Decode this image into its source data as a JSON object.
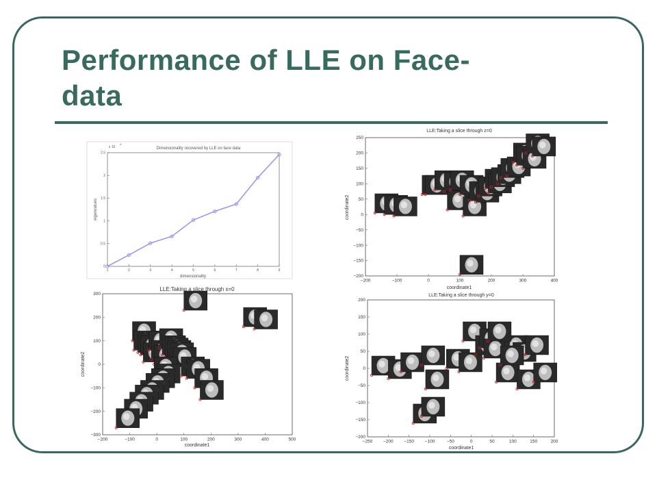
{
  "slide": {
    "title_line1": "Performance of LLE on Face-",
    "title_line2": "data",
    "colors": {
      "title": "#386b5e",
      "frame": "#3b6660",
      "line_series": "#9999ee",
      "marker": "#cc2222",
      "face_dark": "#2a2a2a"
    }
  },
  "chart_data": [
    {
      "type": "line",
      "title": "Dimensionality recovered by LLE on face data",
      "xlabel": "dimensionality",
      "ylabel": "eigenvalues",
      "exponent_label": "x 10",
      "exponent_power": "-4",
      "xlim": [
        1,
        9
      ],
      "ylim": [
        0,
        2.5
      ],
      "xticks": [
        "1",
        "2",
        "3",
        "4",
        "5",
        "6",
        "7",
        "8",
        "9"
      ],
      "yticks": [
        "0",
        "0.5",
        "1",
        "1.5",
        "2",
        "2.5"
      ],
      "x": [
        1,
        2,
        3,
        4,
        5,
        6,
        7,
        8,
        9
      ],
      "y": [
        0.0,
        0.25,
        0.51,
        0.66,
        1.02,
        1.21,
        1.37,
        1.95,
        2.46
      ],
      "grid": false
    },
    {
      "type": "scatter",
      "title": "LLE:Taking a slice through z=0",
      "xlabel": "coordinate1",
      "ylabel": "coordinate2",
      "xlim": [
        -200,
        400
      ],
      "ylim": [
        -200,
        250
      ],
      "xticks": [
        "−200",
        "−100",
        "0",
        "100",
        "200",
        "300",
        "400"
      ],
      "yticks": [
        "−200",
        "−150",
        "−100",
        "−50",
        "0",
        "50",
        "100",
        "150",
        "200",
        "250"
      ],
      "x": [
        -170,
        -140,
        -110,
        -20,
        -10,
        20,
        50,
        60,
        70,
        100,
        110,
        130,
        150,
        160,
        180,
        190,
        200,
        220,
        230,
        250,
        270,
        280,
        300,
        310,
        330,
        100
      ],
      "y": [
        5,
        0,
        -5,
        65,
        65,
        80,
        75,
        15,
        80,
        65,
        -5,
        45,
        40,
        60,
        85,
        70,
        90,
        100,
        120,
        125,
        170,
        160,
        150,
        200,
        190,
        -195
      ]
    },
    {
      "type": "scatter",
      "title": "LLE:Taking a slice through x=0",
      "xlabel": "coordinate1",
      "ylabel": "coordinate2",
      "xlim": [
        -200,
        500
      ],
      "ylim": [
        -300,
        300
      ],
      "xticks": [
        "−200",
        "−100",
        "0",
        "100",
        "200",
        "300",
        "400",
        "500"
      ],
      "yticks": [
        "−300",
        "−200",
        "−100",
        "0",
        "100",
        "200",
        "300"
      ],
      "x": [
        -90,
        -85,
        -70,
        -60,
        -50,
        -30,
        -20,
        -10,
        10,
        20,
        30,
        40,
        50,
        60,
        -10,
        0,
        -20,
        -40,
        -60,
        -80,
        -100,
        -120,
        -150,
        90,
        110,
        140,
        160,
        100,
        320,
        360
      ],
      "y": [
        100,
        60,
        50,
        40,
        10,
        60,
        20,
        0,
        70,
        40,
        30,
        20,
        10,
        -10,
        -50,
        -80,
        -100,
        -120,
        -150,
        -170,
        -200,
        -230,
        -270,
        -50,
        -60,
        -100,
        -150,
        230,
        160,
        150
      ]
    },
    {
      "type": "scatter",
      "title": "LLE:Taking a slice through y=0",
      "xlabel": "coordinate1",
      "ylabel": "coordinate2",
      "xlim": [
        -250,
        200
      ],
      "ylim": [
        -200,
        200
      ],
      "xticks": [
        "−250",
        "−200",
        "−150",
        "−100",
        "−50",
        "0",
        "50",
        "100",
        "150",
        "200"
      ],
      "yticks": [
        "−200",
        "−150",
        "−100",
        "−50",
        "0",
        "50",
        "100",
        "150",
        "200"
      ],
      "x": [
        -240,
        -200,
        -170,
        -120,
        -110,
        -60,
        -30,
        -20,
        10,
        20,
        30,
        60,
        80,
        100,
        110,
        130,
        150,
        40,
        70,
        -140,
        -120
      ],
      "y": [
        -20,
        -30,
        -10,
        10,
        -60,
        0,
        -10,
        80,
        40,
        60,
        30,
        -40,
        40,
        20,
        -60,
        40,
        -40,
        80,
        10,
        -160,
        -140
      ]
    }
  ]
}
